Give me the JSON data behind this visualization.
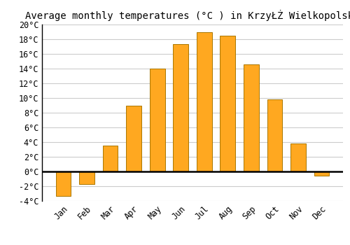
{
  "title": "Average monthly temperatures (°C ) in KrzyŁŻ Wielkopolski",
  "months": [
    "Jan",
    "Feb",
    "Mar",
    "Apr",
    "May",
    "Jun",
    "Jul",
    "Aug",
    "Sep",
    "Oct",
    "Nov",
    "Dec"
  ],
  "values": [
    -3.3,
    -1.7,
    3.5,
    9.0,
    14.0,
    17.3,
    19.0,
    18.5,
    14.6,
    9.8,
    3.8,
    -0.6
  ],
  "bar_color": "#FFA820",
  "bar_edge_color": "#AA7700",
  "ylim": [
    -4,
    20
  ],
  "yticks": [
    -4,
    -2,
    0,
    2,
    4,
    6,
    8,
    10,
    12,
    14,
    16,
    18,
    20
  ],
  "ylabel_format": "°C",
  "background_color": "#ffffff",
  "grid_color": "#cccccc",
  "title_fontsize": 10,
  "tick_fontsize": 8.5,
  "bar_width": 0.65
}
